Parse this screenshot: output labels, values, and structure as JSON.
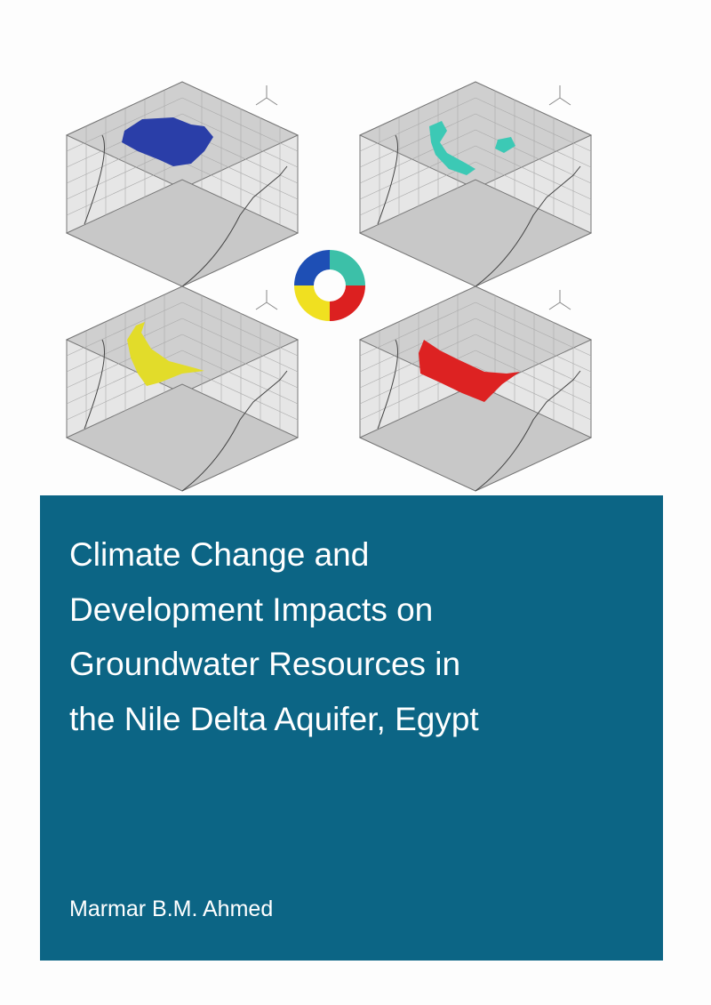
{
  "cover": {
    "title_lines": [
      "Climate Change and",
      "Development Impacts on",
      "Groundwater Resources in",
      "the Nile Delta Aquifer, Egypt"
    ],
    "author": "Marmar B.M. Ahmed"
  },
  "figures": {
    "plot_colors": [
      "#2a3ea8",
      "#3cc9b5",
      "#e2dc2a",
      "#dd2222"
    ],
    "donut_colors": [
      "#1e4fb5",
      "#3cc0a8",
      "#dc2020",
      "#f0e020"
    ],
    "panel_color": "#0c6585"
  }
}
